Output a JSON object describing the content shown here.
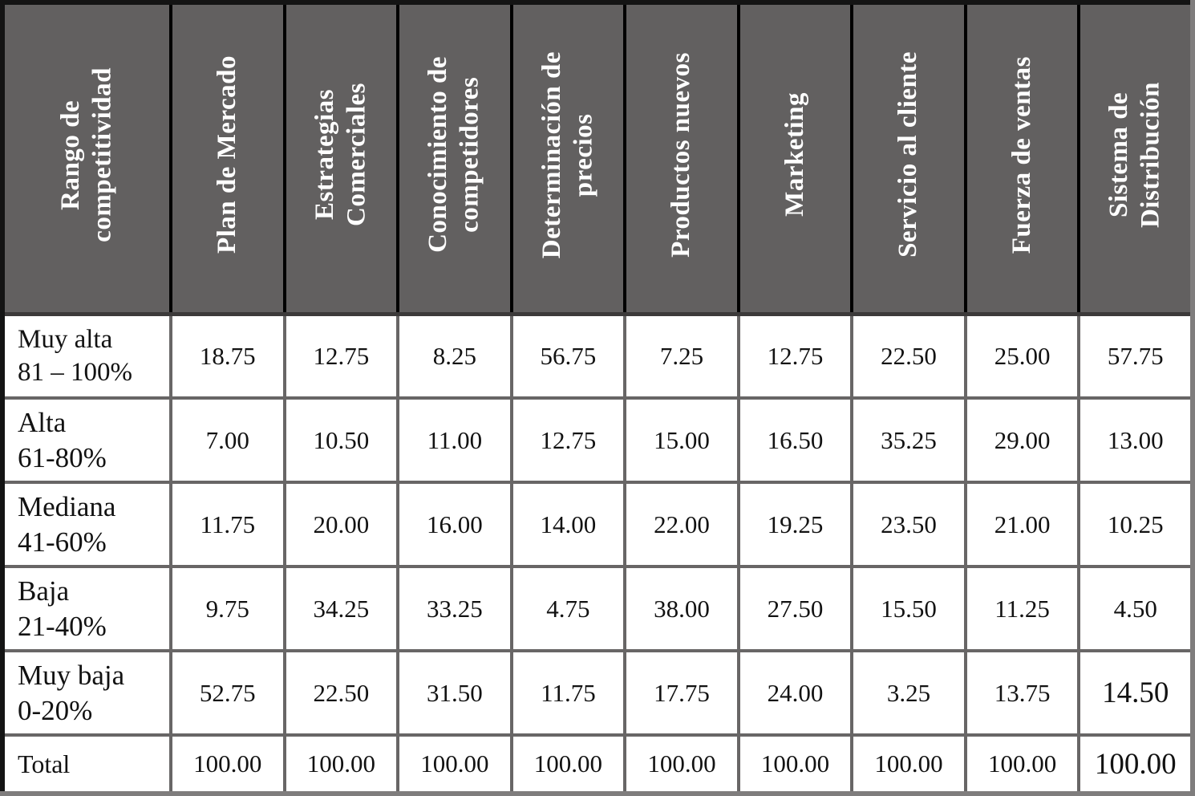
{
  "table": {
    "name": "rango-de-competitividad-matrix",
    "columns": [
      "Rango de\ncompetitividad",
      "Plan de Mercado",
      "Estrategias\nComerciales",
      "Conocimiento de\ncompetidores",
      "Determinación de\nprecios",
      "Productos nuevos",
      "Marketing",
      "Servicio al cliente",
      "Fuerza de ventas",
      "Sistema de\nDistribución"
    ],
    "rows": [
      {
        "label": "Muy alta\n81 – 100%",
        "values": [
          "18.75",
          "12.75",
          "8.25",
          "56.75",
          "7.25",
          "12.75",
          "22.50",
          "25.00",
          "57.75"
        ]
      },
      {
        "label": "Alta\n61-80%",
        "values": [
          "7.00",
          "10.50",
          "11.00",
          "12.75",
          "15.00",
          "16.50",
          "35.25",
          "29.00",
          "13.00"
        ]
      },
      {
        "label": "Mediana\n41-60%",
        "values": [
          "11.75",
          "20.00",
          "16.00",
          "14.00",
          "22.00",
          "19.25",
          "23.50",
          "21.00",
          "10.25"
        ]
      },
      {
        "label": "Baja\n21-40%",
        "values": [
          "9.75",
          "34.25",
          "33.25",
          "4.75",
          "38.00",
          "27.50",
          "15.50",
          "11.25",
          "4.50"
        ]
      },
      {
        "label": "Muy baja\n0-20%",
        "values": [
          "52.75",
          "22.50",
          "31.50",
          "11.75",
          "17.75",
          "24.00",
          "3.25",
          "13.75",
          "14.50"
        ]
      },
      {
        "label": "Total",
        "values": [
          "100.00",
          "100.00",
          "100.00",
          "100.00",
          "100.00",
          "100.00",
          "100.00",
          "100.00",
          "100.00"
        ]
      }
    ],
    "colors": {
      "header_bg": "#626060",
      "header_text": "#ffffff",
      "body_text": "#121212",
      "header_grid": "#000000",
      "body_grid": "#686666"
    }
  }
}
